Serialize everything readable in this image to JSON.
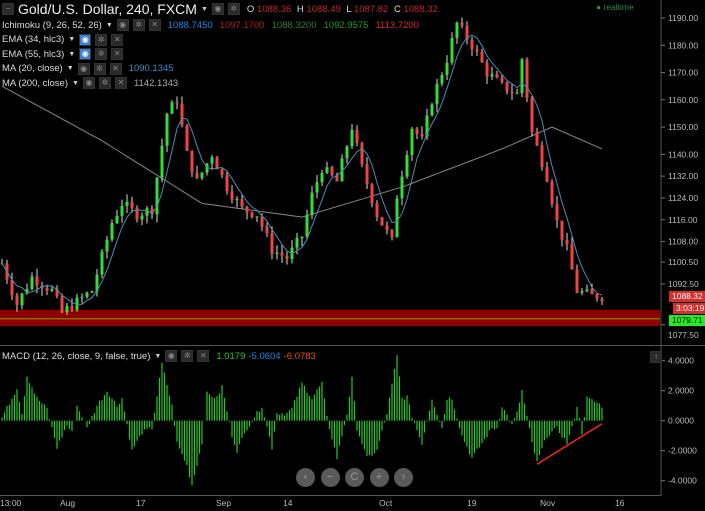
{
  "header": {
    "symbol": "Gold/U.S. Dollar, 240, FXCM",
    "ohlc": {
      "o_label": "O",
      "o": "1088.36",
      "h_label": "H",
      "h": "1088.49",
      "l_label": "L",
      "l": "1087.82",
      "c_label": "C",
      "c": "1088.32"
    },
    "realtime": "realtime"
  },
  "indicators": [
    {
      "label": "Ichimoku (9, 26, 52, 26)",
      "values": [
        {
          "v": "1088.7450",
          "color": "#1e88e5"
        },
        {
          "v": "1097.1700",
          "color": "#b71c1c"
        },
        {
          "v": "1088.3200",
          "color": "#2e7d32"
        },
        {
          "v": "1092.9575",
          "color": "#1b9e1b"
        },
        {
          "v": "1113.7200",
          "color": "#d32f2f"
        }
      ]
    },
    {
      "label": "EMA (34, hlc3)",
      "values": []
    },
    {
      "label": "EMA (55, hlc3)",
      "values": []
    },
    {
      "label": "MA (20, close)",
      "values": [
        {
          "v": "1090.1345",
          "color": "#3a8fc0"
        }
      ]
    },
    {
      "label": "MA (200, close)",
      "values": [
        {
          "v": "1142.1343",
          "color": "#aaaaaa"
        }
      ]
    }
  ],
  "macd": {
    "label": "MACD (12, 26, close, 9, false, true)",
    "values": [
      {
        "v": "1.0179",
        "color": "#22cc22"
      },
      {
        "v": "-5.0604",
        "color": "#1e88e5"
      },
      {
        "v": "-6.0783",
        "color": "#e65100"
      }
    ]
  },
  "price_tags": {
    "last": "1088.32",
    "countdown": "3:03:19",
    "level": "1079.71"
  },
  "nav_buttons": [
    "‹",
    "−",
    "C",
    "+",
    "›"
  ],
  "chart_data": [
    {
      "type": "candlestick",
      "y_ticks": [
        1190,
        1180,
        1170,
        1160,
        1150,
        1140,
        1132,
        1124,
        1116,
        1108,
        1100.5,
        1092.5,
        1077.5
      ],
      "y_tick_labels": [
        "1190.00",
        "1180.00",
        "1170.00",
        "1160.00",
        "1150.00",
        "1140.00",
        "1132.00",
        "1124.00",
        "1116.00",
        "1108.00",
        "1100.50",
        "1092.50",
        "1077.50"
      ],
      "ylim": [
        1073,
        1196
      ],
      "x_tick_labels": [
        "13:00",
        "Aug",
        "17",
        "Sep",
        "14",
        "Oct",
        "19",
        "Nov",
        "16"
      ],
      "close_path": [
        [
          0,
          1100
        ],
        [
          3,
          1085
        ],
        [
          6,
          1095
        ],
        [
          10,
          1090
        ],
        [
          12,
          1082
        ],
        [
          18,
          1090
        ],
        [
          22,
          1115
        ],
        [
          24,
          1122
        ],
        [
          27,
          1118
        ],
        [
          30,
          1120
        ],
        [
          33,
          1155
        ],
        [
          35,
          1160
        ],
        [
          37,
          1140
        ],
        [
          39,
          1130
        ],
        [
          42,
          1140
        ],
        [
          45,
          1128
        ],
        [
          48,
          1120
        ],
        [
          51,
          1118
        ],
        [
          54,
          1105
        ],
        [
          57,
          1102
        ],
        [
          60,
          1110
        ],
        [
          62,
          1125
        ],
        [
          64,
          1135
        ],
        [
          67,
          1130
        ],
        [
          70,
          1150
        ],
        [
          72,
          1135
        ],
        [
          75,
          1118
        ],
        [
          78,
          1108
        ],
        [
          79,
          1125
        ],
        [
          82,
          1150
        ],
        [
          84,
          1145
        ],
        [
          86,
          1160
        ],
        [
          89,
          1175
        ],
        [
          91,
          1188
        ],
        [
          94,
          1180
        ],
        [
          97,
          1170
        ],
        [
          100,
          1165
        ],
        [
          103,
          1162
        ],
        [
          104,
          1175
        ],
        [
          106,
          1148
        ],
        [
          109,
          1132
        ],
        [
          111,
          1115
        ],
        [
          113,
          1105
        ],
        [
          115,
          1090
        ],
        [
          118,
          1088
        ],
        [
          120,
          1088
        ]
      ],
      "ma200_path": [
        [
          0,
          1165
        ],
        [
          20,
          1145
        ],
        [
          40,
          1122
        ],
        [
          60,
          1117
        ],
        [
          80,
          1128
        ],
        [
          100,
          1142
        ],
        [
          110,
          1150
        ],
        [
          120,
          1142
        ]
      ],
      "support_zone": [
        1077,
        1083
      ],
      "support_level": 1079.71,
      "colors": {
        "up": "#33dd33",
        "down": "#ee4444",
        "zone": "#8b0000",
        "ma200": "#888888",
        "ma20": "#4a8db7"
      }
    },
    {
      "type": "histogram",
      "title": "MACD (12, 26, close, 9, false, true)",
      "y_ticks": [
        4,
        2,
        0,
        -2,
        -4
      ],
      "y_tick_labels": [
        "4.0000",
        "2.0000",
        "0.0000",
        "-2.0000",
        "-4.0000"
      ],
      "ylim": [
        -5.3,
        4.5
      ],
      "hist_path": [
        [
          0,
          0.2
        ],
        [
          2,
          1.5
        ],
        [
          3,
          2.2
        ],
        [
          4,
          0.5
        ],
        [
          5,
          3.0
        ],
        [
          7,
          1.5
        ],
        [
          9,
          0.8
        ],
        [
          10,
          -0.5
        ],
        [
          11,
          -1.8
        ],
        [
          13,
          -0.3
        ],
        [
          14,
          -0.8
        ],
        [
          15,
          1.0
        ],
        [
          16,
          0.3
        ],
        [
          17,
          -0.5
        ],
        [
          19,
          1.0
        ],
        [
          21,
          2.0
        ],
        [
          23,
          1.0
        ],
        [
          24,
          1.5
        ],
        [
          26,
          -2.0
        ],
        [
          28,
          -0.8
        ],
        [
          30,
          -0.5
        ],
        [
          32,
          3.8
        ],
        [
          34,
          1.0
        ],
        [
          35,
          -1.5
        ],
        [
          37,
          -3.0
        ],
        [
          38,
          -4.3
        ],
        [
          40,
          -1.5
        ],
        [
          41,
          1.8
        ],
        [
          43,
          1.5
        ],
        [
          44,
          2.3
        ],
        [
          46,
          -1.0
        ],
        [
          47,
          -2.0
        ],
        [
          49,
          -0.5
        ],
        [
          51,
          0.5
        ],
        [
          52,
          1.0
        ],
        [
          54,
          -1.8
        ],
        [
          55,
          0.5
        ],
        [
          57,
          0.5
        ],
        [
          58,
          0.8
        ],
        [
          60,
          2.5
        ],
        [
          62,
          1.5
        ],
        [
          64,
          2.5
        ],
        [
          65,
          0.2
        ],
        [
          67,
          -2.5
        ],
        [
          69,
          0.5
        ],
        [
          70,
          2.8
        ],
        [
          71,
          -0.5
        ],
        [
          73,
          -2.5
        ],
        [
          75,
          -2.0
        ],
        [
          77,
          0.5
        ],
        [
          79,
          4.3
        ],
        [
          80,
          1.5
        ],
        [
          81,
          1.6
        ],
        [
          82,
          0.3
        ],
        [
          84,
          -1.5
        ],
        [
          86,
          1.5
        ],
        [
          87,
          0.5
        ],
        [
          88,
          -0.5
        ],
        [
          89,
          1.5
        ],
        [
          90,
          1.5
        ],
        [
          92,
          -1.0
        ],
        [
          94,
          -2.5
        ],
        [
          96,
          -1.5
        ],
        [
          98,
          -0.5
        ],
        [
          99,
          -0.5
        ],
        [
          100,
          1.0
        ],
        [
          102,
          -0.3
        ],
        [
          103,
          0.5
        ],
        [
          104,
          2.0
        ],
        [
          106,
          -1.5
        ],
        [
          107,
          -2.8
        ],
        [
          109,
          -1.0
        ],
        [
          111,
          -0.5
        ],
        [
          113,
          -1.5
        ],
        [
          114,
          -0.5
        ],
        [
          115,
          1.0
        ],
        [
          116,
          -0.8
        ],
        [
          117,
          1.5
        ],
        [
          119,
          1.2
        ],
        [
          120,
          1.0
        ]
      ],
      "trendline": [
        [
          107,
          -2.9
        ],
        [
          120,
          -0.2
        ]
      ],
      "colors": {
        "bar": "#22cc22",
        "trendline": "#ff2222"
      }
    }
  ]
}
